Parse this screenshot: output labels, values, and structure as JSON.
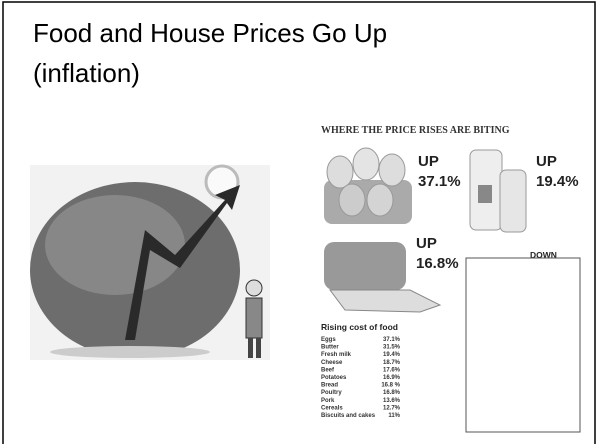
{
  "slide": {
    "title_lines": [
      "Food  and House Prices Go Up",
      "(inflation)"
    ],
    "infographic": {
      "heading": "WHERE THE PRICE RISES ARE BITING",
      "callouts": [
        {
          "direction": "UP",
          "change": "37.1%"
        },
        {
          "direction": "UP",
          "change": "19.4%"
        },
        {
          "direction": "UP",
          "change": "16.8%"
        },
        {
          "direction": "DOWN"
        }
      ],
      "table_title": "Rising cost of food",
      "rows": [
        [
          "Eggs",
          "37.1%"
        ],
        [
          "Butter",
          "31.5%"
        ],
        [
          "Fresh milk",
          "19.4%"
        ],
        [
          "Cheese",
          "18.7%"
        ],
        [
          "Beef",
          "17.6%"
        ],
        [
          "Potatoes",
          "16.9%"
        ],
        [
          "Bread",
          "16.8 %"
        ],
        [
          "Poultry",
          "16.8%"
        ],
        [
          "Pork",
          "13.6%"
        ],
        [
          "Cereals",
          "12.7%"
        ],
        [
          "Biscuits and cakes",
          "11%"
        ]
      ]
    }
  }
}
